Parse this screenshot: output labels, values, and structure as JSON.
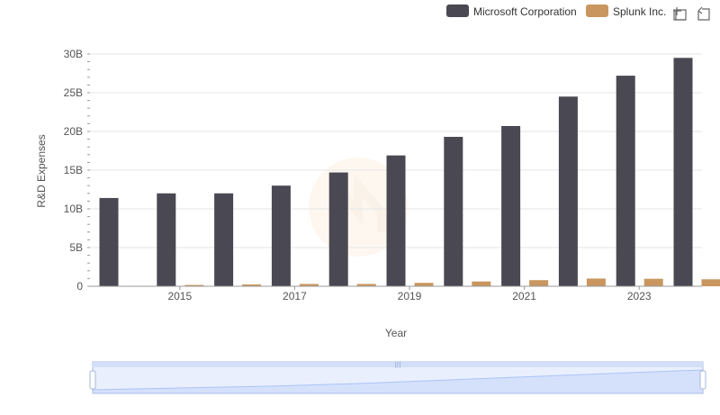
{
  "toolbox": {
    "zoom_icon": "zoom-icon",
    "restore_icon": "restore-icon"
  },
  "colors": {
    "microsoft": "#4a4852",
    "splunk": "#c9965f",
    "grid": "#e6e6e6",
    "axis": "#999999",
    "zoom_fill": "#dbe6fb",
    "zoom_border": "#aabbe3",
    "zoom_handle": "#ffffff"
  },
  "chart_data": {
    "type": "bar",
    "xlabel": "Year",
    "ylabel": "R&D Expenses",
    "x_tick_labels": [
      "2015",
      "2017",
      "2019",
      "2021",
      "2023"
    ],
    "categories": [
      "2014",
      "2015",
      "2016",
      "2017",
      "2018",
      "2019",
      "2020",
      "2021",
      "2022",
      "2023",
      "2024"
    ],
    "y_tick_labels": [
      "0",
      "5B",
      "10B",
      "15B",
      "20B",
      "25B",
      "30B"
    ],
    "ylim": [
      0,
      30000000000
    ],
    "y_ticks": [
      0,
      5000000000,
      10000000000,
      15000000000,
      20000000000,
      25000000000,
      30000000000
    ],
    "grid": true,
    "legend_position": "top-right",
    "series": [
      {
        "name": "Microsoft Corporation",
        "color": "#4a4852",
        "values": [
          11400000000,
          12000000000,
          12000000000,
          13000000000,
          14700000000,
          16900000000,
          19300000000,
          20700000000,
          24500000000,
          27200000000,
          29500000000
        ]
      },
      {
        "name": "Splunk Inc.",
        "color": "#c9965f",
        "values": [
          60000000,
          170000000,
          240000000,
          300000000,
          300000000,
          440000000,
          620000000,
          790000000,
          1000000000,
          970000000,
          900000000
        ]
      }
    ]
  }
}
